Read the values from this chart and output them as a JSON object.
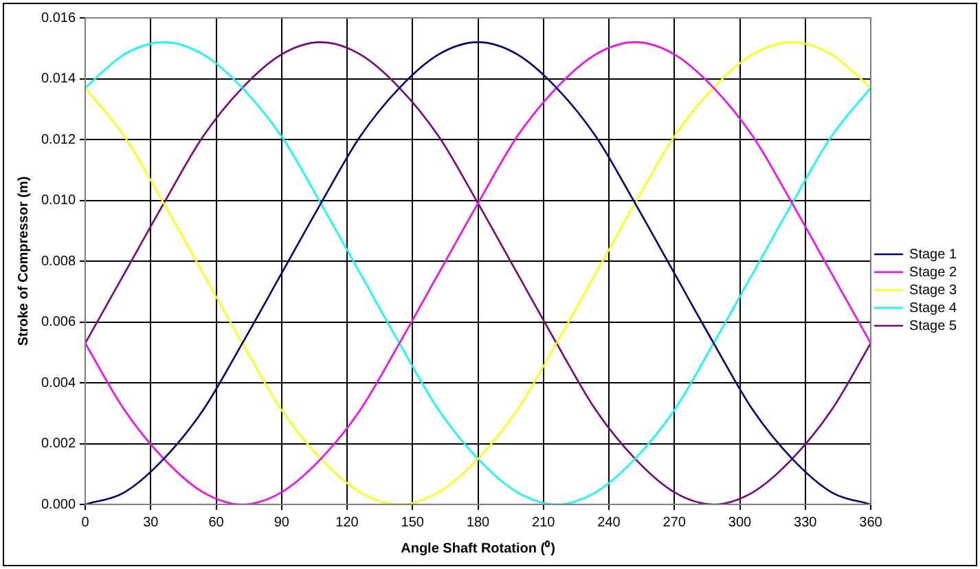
{
  "chart_data": {
    "type": "line",
    "xlabel": "Angle Shaft Rotation (⁰)",
    "ylabel": "Stroke of Compressor (m)",
    "x": [
      0,
      18,
      36,
      54,
      72,
      90,
      108,
      126,
      144,
      162,
      180,
      198,
      216,
      234,
      252,
      270,
      288,
      306,
      324,
      342,
      360
    ],
    "series": [
      {
        "name": "Stage 1",
        "color": "#000080",
        "values": [
          0,
          0.0004,
          0.0015,
          0.0031,
          0.0053,
          0.0076,
          0.0099,
          0.0121,
          0.0137,
          0.0148,
          0.0152,
          0.0148,
          0.0137,
          0.0121,
          0.0099,
          0.0076,
          0.0053,
          0.0031,
          0.0015,
          0.0004,
          0
        ]
      },
      {
        "name": "Stage 2",
        "color": "#ff00ff",
        "values": [
          0.0053,
          0.0031,
          0.0015,
          0.0004,
          0,
          0.0004,
          0.0015,
          0.0031,
          0.0053,
          0.0076,
          0.0099,
          0.0121,
          0.0137,
          0.0148,
          0.0152,
          0.0148,
          0.0137,
          0.0121,
          0.0099,
          0.0076,
          0.0053
        ]
      },
      {
        "name": "Stage 3",
        "color": "#ffff00",
        "values": [
          0.0137,
          0.0121,
          0.0099,
          0.0076,
          0.0053,
          0.0031,
          0.0015,
          0.0004,
          0,
          0.0004,
          0.0015,
          0.0031,
          0.0053,
          0.0076,
          0.0099,
          0.0121,
          0.0137,
          0.0148,
          0.0152,
          0.0148,
          0.0137
        ]
      },
      {
        "name": "Stage 4",
        "color": "#00ffff",
        "values": [
          0.0137,
          0.0148,
          0.0152,
          0.0148,
          0.0137,
          0.0121,
          0.0099,
          0.0076,
          0.0053,
          0.0031,
          0.0015,
          0.0004,
          0,
          0.0004,
          0.0015,
          0.0031,
          0.0053,
          0.0076,
          0.0099,
          0.0121,
          0.0137
        ]
      },
      {
        "name": "Stage 5",
        "color": "#800080",
        "values": [
          0.0053,
          0.0076,
          0.0099,
          0.0121,
          0.0137,
          0.0148,
          0.0152,
          0.0148,
          0.0137,
          0.0121,
          0.0099,
          0.0076,
          0.0053,
          0.0031,
          0.0015,
          0.0004,
          0,
          0.0004,
          0.0015,
          0.0031,
          0.0053
        ]
      }
    ],
    "xlim": [
      0,
      360
    ],
    "xticks": [
      0,
      30,
      60,
      90,
      120,
      150,
      180,
      210,
      240,
      270,
      300,
      330,
      360
    ],
    "ylim": [
      0,
      0.016
    ],
    "yticks": [
      {
        "value": 0,
        "label": "0.000"
      },
      {
        "value": 0.002,
        "label": "0.002"
      },
      {
        "value": 0.004,
        "label": "0.004"
      },
      {
        "value": 0.006,
        "label": "0.006"
      },
      {
        "value": 0.008,
        "label": "0.008"
      },
      {
        "value": 0.01,
        "label": "0.010"
      },
      {
        "value": 0.012,
        "label": "0.012"
      },
      {
        "value": 0.014,
        "label": "0.014"
      },
      {
        "value": 0.016,
        "label": "0.016"
      }
    ],
    "grid": true,
    "legend": "right",
    "marker": "none",
    "line_style": "solid"
  }
}
